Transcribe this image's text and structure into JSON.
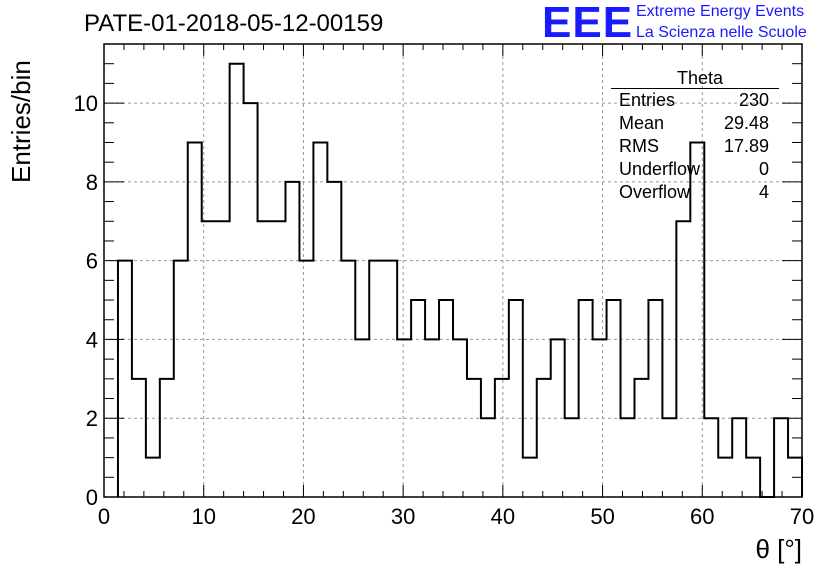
{
  "title": "PATE-01-2018-05-12-00159",
  "logo": {
    "mark": "EEE",
    "line1": "Extreme Energy Events",
    "line2": "La Scienza nelle Scuole",
    "color": "#1a1aff"
  },
  "stats": {
    "name": "Theta",
    "rows": [
      {
        "label": "Entries",
        "value": "230"
      },
      {
        "label": "Mean",
        "value": "29.48"
      },
      {
        "label": "RMS",
        "value": "17.89"
      },
      {
        "label": "Underflow",
        "value": "0"
      },
      {
        "label": "Overflow",
        "value": "4"
      }
    ]
  },
  "chart_data": {
    "type": "bar",
    "title": "PATE-01-2018-05-12-00159",
    "xlabel": "θ [°]",
    "ylabel": "Entries/bin",
    "xlim": [
      0,
      70
    ],
    "ylim": [
      0,
      11.5
    ],
    "grid": true,
    "x_ticks": [
      0,
      10,
      20,
      30,
      40,
      50,
      60,
      70
    ],
    "y_ticks": [
      0,
      2,
      4,
      6,
      8,
      10
    ],
    "bin_width": 1.4,
    "bin_start": 1.4,
    "values": [
      6,
      3,
      1,
      3,
      6,
      9,
      7,
      7,
      11,
      10,
      7,
      7,
      8,
      6,
      9,
      8,
      6,
      4,
      6,
      6,
      4,
      5,
      4,
      5,
      4,
      3,
      2,
      3,
      5,
      1,
      3,
      4,
      2,
      5,
      4,
      5,
      2,
      3,
      5,
      2,
      7,
      9,
      2,
      1,
      2,
      1,
      0,
      2,
      1
    ]
  }
}
